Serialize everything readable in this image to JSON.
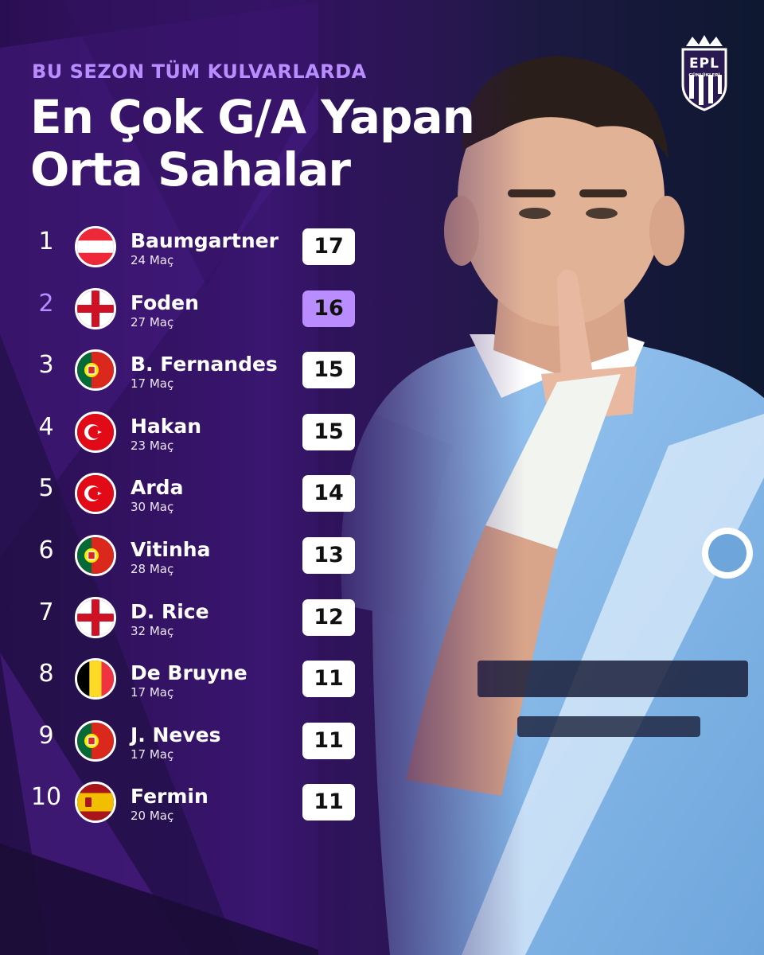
{
  "kicker": "BU SEZON TÜM KULVARLARDA",
  "title_line1": "En Çok G/A Yapan",
  "title_line2": "Orta Sahalar",
  "logo": {
    "text": "EPL",
    "subtext": "GÜNLÜKLERİ"
  },
  "colors": {
    "accent": "#b98cff",
    "bg_purple": "#3a1670",
    "score_bg": "#ffffff"
  },
  "players": [
    {
      "rank": "1",
      "name": "Baumgartner",
      "matches": "24 Maç",
      "score": "17",
      "flag": "austria-flag-icon",
      "highlight": false
    },
    {
      "rank": "2",
      "name": "Foden",
      "matches": "27 Maç",
      "score": "16",
      "flag": "england-flag-icon",
      "highlight": true
    },
    {
      "rank": "3",
      "name": "B. Fernandes",
      "matches": "17 Maç",
      "score": "15",
      "flag": "portugal-flag-icon",
      "highlight": false
    },
    {
      "rank": "4",
      "name": "Hakan",
      "matches": "23 Maç",
      "score": "15",
      "flag": "turkey-flag-icon",
      "highlight": false
    },
    {
      "rank": "5",
      "name": "Arda",
      "matches": "30 Maç",
      "score": "14",
      "flag": "turkey-flag-icon",
      "highlight": false
    },
    {
      "rank": "6",
      "name": "Vitinha",
      "matches": "28 Maç",
      "score": "13",
      "flag": "portugal-flag-icon",
      "highlight": false
    },
    {
      "rank": "7",
      "name": "D. Rice",
      "matches": "32 Maç",
      "score": "12",
      "flag": "england-flag-icon",
      "highlight": false
    },
    {
      "rank": "8",
      "name": "De Bruyne",
      "matches": "17 Maç",
      "score": "11",
      "flag": "belgium-flag-icon",
      "highlight": false
    },
    {
      "rank": "9",
      "name": "J. Neves",
      "matches": "17 Maç",
      "score": "11",
      "flag": "portugal-flag-icon",
      "highlight": false
    },
    {
      "rank": "10",
      "name": "Fermin",
      "matches": "20 Maç",
      "score": "11",
      "flag": "spain-flag-icon",
      "highlight": false
    }
  ]
}
